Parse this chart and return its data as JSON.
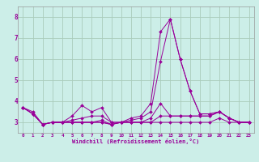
{
  "xlabel": "Windchill (Refroidissement éolien,°C)",
  "background_color": "#cceee8",
  "grid_color": "#aaccbb",
  "line_color": "#990099",
  "xlim": [
    -0.5,
    23.5
  ],
  "ylim": [
    2.5,
    8.5
  ],
  "yticks": [
    3,
    4,
    5,
    6,
    7,
    8
  ],
  "xticks": [
    0,
    1,
    2,
    3,
    4,
    5,
    6,
    7,
    8,
    9,
    10,
    11,
    12,
    13,
    14,
    15,
    16,
    17,
    18,
    19,
    20,
    21,
    22,
    23
  ],
  "line1": [
    3.7,
    3.5,
    2.9,
    3.0,
    3.0,
    3.3,
    3.8,
    3.5,
    3.7,
    3.0,
    3.0,
    3.2,
    3.3,
    3.9,
    7.3,
    7.9,
    6.0,
    4.5,
    3.4,
    3.4,
    3.5,
    3.2,
    3.0,
    3.0
  ],
  "line2": [
    3.7,
    3.4,
    2.9,
    3.0,
    3.0,
    3.1,
    3.2,
    3.3,
    3.3,
    3.0,
    3.0,
    3.1,
    3.2,
    3.5,
    5.9,
    7.9,
    6.0,
    4.5,
    3.4,
    3.4,
    3.5,
    3.2,
    3.0,
    3.0
  ],
  "line3": [
    3.7,
    3.4,
    2.9,
    3.0,
    3.0,
    3.0,
    3.0,
    3.0,
    3.1,
    2.9,
    3.0,
    3.0,
    3.0,
    3.2,
    3.9,
    3.3,
    3.3,
    3.3,
    3.3,
    3.3,
    3.5,
    3.2,
    3.0,
    3.0
  ],
  "line4": [
    3.7,
    3.4,
    2.9,
    3.0,
    3.0,
    3.0,
    3.0,
    3.0,
    3.0,
    2.9,
    3.0,
    3.0,
    3.0,
    3.0,
    3.3,
    3.3,
    3.3,
    3.3,
    3.3,
    3.3,
    3.5,
    3.2,
    3.0,
    3.0
  ],
  "line5": [
    3.7,
    3.4,
    2.9,
    3.0,
    3.0,
    3.0,
    3.0,
    3.0,
    3.0,
    2.9,
    3.0,
    3.0,
    3.0,
    3.0,
    3.0,
    3.0,
    3.0,
    3.0,
    3.0,
    3.0,
    3.2,
    3.0,
    3.0,
    3.0
  ]
}
